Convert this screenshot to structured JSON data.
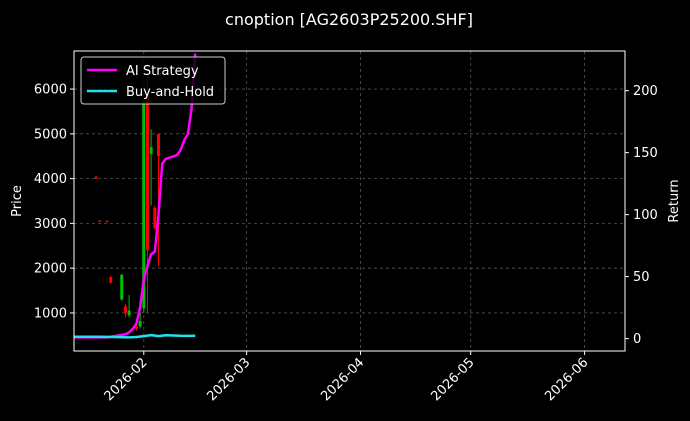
{
  "chart_data": {
    "type": "line",
    "title": "cnoption [AG2603P25200.SHF]",
    "xlabel": "",
    "ylabel_left": "Price",
    "ylabel_right": "Return",
    "x_ticks": [
      "2026-02",
      "2026-03",
      "2026-04",
      "2026-05",
      "2026-06"
    ],
    "x_tick_dates": [
      "2026-02-01",
      "2026-03-01",
      "2026-04-01",
      "2026-05-01",
      "2026-06-01"
    ],
    "xlim": [
      "2026-01-13",
      "2026-06-12"
    ],
    "y_left_ticks": [
      1000,
      2000,
      3000,
      4000,
      5000,
      6000
    ],
    "y_left_lim": [
      150,
      6850
    ],
    "y_right_ticks": [
      0,
      50,
      100,
      150,
      200
    ],
    "y_right_lim": [
      -10,
      232
    ],
    "grid": true,
    "legend_placement": "top-left",
    "series": [
      {
        "name": "AI Strategy",
        "color": "#ff00ff",
        "axis": "right",
        "x": [
          "2026-01-13",
          "2026-01-16",
          "2026-01-19",
          "2026-01-22",
          "2026-01-24",
          "2026-01-26",
          "2026-01-27",
          "2026-01-28",
          "2026-01-29",
          "2026-01-30",
          "2026-01-31",
          "2026-02-01",
          "2026-02-02",
          "2026-02-03",
          "2026-02-04",
          "2026-02-05",
          "2026-02-06",
          "2026-02-07",
          "2026-02-08",
          "2026-02-09",
          "2026-02-10",
          "2026-02-11",
          "2026-02-12",
          "2026-02-13",
          "2026-02-14",
          "2026-02-15"
        ],
        "values": [
          1,
          1,
          1,
          1,
          2,
          3,
          3.5,
          5,
          8,
          12,
          25,
          48,
          59,
          68,
          70,
          100,
          141,
          145,
          146,
          147,
          148,
          152,
          160,
          165,
          185,
          230
        ]
      },
      {
        "name": "Buy-and-Hold",
        "color": "#22e0ee",
        "axis": "right",
        "x": [
          "2026-01-13",
          "2026-01-16",
          "2026-01-19",
          "2026-01-22",
          "2026-01-25",
          "2026-01-28",
          "2026-01-30",
          "2026-02-01",
          "2026-02-03",
          "2026-02-05",
          "2026-02-07",
          "2026-02-09",
          "2026-02-11",
          "2026-02-13",
          "2026-02-15"
        ],
        "values": [
          1.5,
          1.5,
          1.5,
          1.4,
          1.2,
          1.0,
          1.3,
          2.0,
          2.8,
          2.0,
          2.7,
          2.5,
          2.3,
          2.2,
          2.3
        ]
      }
    ],
    "candles": [
      {
        "date": "2026-01-19",
        "open": 4040,
        "close": 4000,
        "high": 4060,
        "low": 3990,
        "color": "#ff0000"
      },
      {
        "date": "2026-01-20",
        "open": 3060,
        "close": 3040,
        "high": 3080,
        "low": 3030,
        "color": "#ff0000"
      },
      {
        "date": "2026-01-22",
        "open": 3050,
        "close": 3030,
        "high": 3070,
        "low": 3020,
        "color": "#ff0000"
      },
      {
        "date": "2026-01-23",
        "open": 1800,
        "close": 1680,
        "high": 1830,
        "low": 1650,
        "color": "#ff0000"
      },
      {
        "date": "2026-01-26",
        "open": 1300,
        "close": 1850,
        "high": 1870,
        "low": 1280,
        "color": "#00c000"
      },
      {
        "date": "2026-01-27",
        "open": 1150,
        "close": 1000,
        "high": 1200,
        "low": 900,
        "color": "#ff0000"
      },
      {
        "date": "2026-01-28",
        "open": 950,
        "close": 1050,
        "high": 1400,
        "low": 900,
        "color": "#00c000"
      },
      {
        "date": "2026-01-30",
        "open": 700,
        "close": 650,
        "high": 850,
        "low": 600,
        "color": "#ff0000"
      },
      {
        "date": "2026-01-31",
        "open": 700,
        "close": 820,
        "high": 1000,
        "low": 650,
        "color": "#00c000"
      },
      {
        "date": "2026-02-01",
        "open": 1100,
        "close": 5700,
        "high": 5800,
        "low": 1000,
        "color": "#00c000"
      },
      {
        "date": "2026-02-02",
        "open": 5900,
        "close": 2400,
        "high": 6400,
        "low": 1000,
        "color": "#ff0000"
      },
      {
        "date": "2026-02-03",
        "open": 4550,
        "close": 4700,
        "high": 5100,
        "low": 3400,
        "color": "#00c000"
      },
      {
        "date": "2026-02-04",
        "open": 3350,
        "close": 2900,
        "high": 3400,
        "low": 2850,
        "color": "#ff0000"
      },
      {
        "date": "2026-02-05",
        "open": 5000,
        "close": 4500,
        "high": 5000,
        "low": 2050,
        "color": "#ff0000"
      }
    ]
  }
}
